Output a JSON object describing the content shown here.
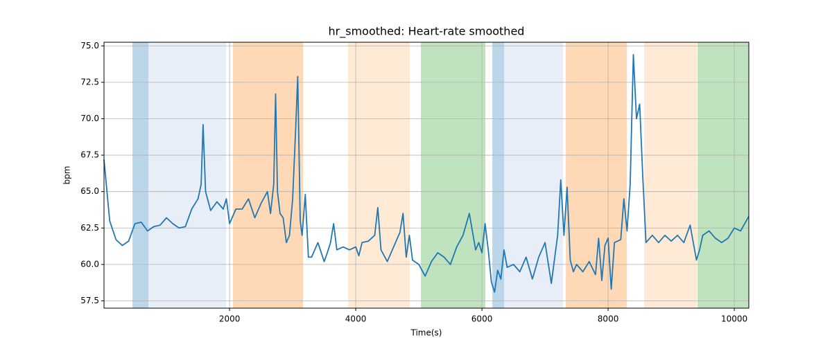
{
  "chart_data": {
    "type": "line",
    "title": "hr_smoothed: Heart-rate smoothed",
    "x_label": "Time(s)",
    "y_label": "bpm",
    "xlim": [
      10,
      10230
    ],
    "ylim": [
      57,
      75.25
    ],
    "xticks": [
      2000,
      4000,
      6000,
      8000,
      10000
    ],
    "yticks": [
      57.5,
      {
        "value": 60,
        "label": "60.0"
      },
      62.5,
      {
        "value": 65,
        "label": "65.0"
      },
      67.5,
      {
        "value": 70,
        "label": "70.0"
      },
      72.5,
      {
        "value": 75,
        "label": "75.0"
      }
    ],
    "grid": true,
    "spans": [
      {
        "start": 462,
        "end": 714,
        "color": "#1f77b4"
      },
      {
        "start": 714,
        "end": 1945,
        "color": "#aec7e8"
      },
      {
        "start": 2055,
        "end": 3165,
        "color": "#ff7f0e"
      },
      {
        "start": 3879,
        "end": 4857,
        "color": "#ffbb78"
      },
      {
        "start": 5033,
        "end": 6055,
        "color": "#2ca02c"
      },
      {
        "start": 6165,
        "end": 6352,
        "color": "#1f77b4"
      },
      {
        "start": 6352,
        "end": 7286,
        "color": "#aec7e8"
      },
      {
        "start": 7330,
        "end": 8297,
        "color": "#ff7f0e"
      },
      {
        "start": 8571,
        "end": 9407,
        "color": "#ffbb78"
      },
      {
        "start": 9418,
        "end": 10230,
        "color": "#2ca02c"
      }
    ],
    "series": [
      {
        "color": "#1f77b4",
        "x": [
          10,
          100,
          200,
          300,
          400,
          500,
          600,
          700,
          800,
          900,
          1000,
          1100,
          1200,
          1300,
          1400,
          1500,
          1550,
          1580,
          1620,
          1700,
          1800,
          1900,
          1950,
          2000,
          2100,
          2200,
          2300,
          2400,
          2500,
          2600,
          2650,
          2700,
          2730,
          2760,
          2800,
          2850,
          2900,
          2950,
          3000,
          3050,
          3080,
          3120,
          3150,
          3200,
          3250,
          3300,
          3400,
          3500,
          3550,
          3600,
          3650,
          3700,
          3800,
          3900,
          4000,
          4050,
          4100,
          4200,
          4300,
          4350,
          4400,
          4500,
          4600,
          4700,
          4750,
          4800,
          4850,
          4900,
          5000,
          5100,
          5200,
          5300,
          5400,
          5500,
          5600,
          5700,
          5800,
          5900,
          5950,
          6000,
          6050,
          6100,
          6150,
          6200,
          6250,
          6300,
          6350,
          6400,
          6500,
          6600,
          6700,
          6800,
          6900,
          7000,
          7100,
          7200,
          7250,
          7300,
          7350,
          7400,
          7450,
          7500,
          7600,
          7700,
          7800,
          7850,
          7900,
          7950,
          8000,
          8050,
          8100,
          8200,
          8250,
          8300,
          8350,
          8400,
          8450,
          8500,
          8550,
          8600,
          8700,
          8800,
          8900,
          9000,
          9100,
          9200,
          9300,
          9400,
          9450,
          9500,
          9600,
          9700,
          9800,
          9900,
          10000,
          10100,
          10230
        ],
        "values": [
          67.2,
          63.0,
          61.7,
          61.3,
          61.6,
          62.8,
          62.9,
          62.3,
          62.6,
          62.7,
          63.2,
          62.8,
          62.5,
          62.6,
          63.8,
          64.5,
          65.5,
          69.6,
          65.0,
          63.7,
          64.3,
          63.8,
          64.5,
          62.8,
          63.8,
          63.8,
          64.5,
          63.2,
          64.2,
          65.0,
          63.5,
          65.5,
          71.7,
          65.0,
          63.5,
          63.2,
          61.5,
          62.0,
          64.5,
          69.5,
          72.9,
          63.0,
          62.0,
          64.8,
          60.5,
          60.5,
          61.5,
          60.2,
          60.8,
          61.5,
          62.8,
          61.0,
          61.2,
          61.0,
          61.2,
          60.6,
          61.5,
          61.6,
          62.0,
          63.9,
          61.0,
          60.2,
          61.2,
          62.2,
          63.5,
          60.5,
          62.0,
          60.3,
          60.0,
          59.2,
          60.2,
          60.8,
          60.5,
          60.0,
          61.2,
          62.0,
          63.5,
          61.0,
          61.5,
          60.8,
          62.8,
          61.0,
          58.8,
          58.1,
          59.6,
          59.0,
          61.0,
          59.8,
          60.0,
          59.5,
          60.5,
          59.0,
          60.5,
          61.5,
          58.7,
          62.0,
          65.8,
          62.0,
          65.3,
          60.3,
          59.5,
          60.0,
          59.5,
          60.2,
          59.3,
          61.8,
          58.9,
          61.3,
          61.8,
          58.3,
          61.5,
          61.7,
          64.5,
          62.3,
          65.5,
          74.4,
          70.0,
          71.0,
          66.0,
          61.5,
          62.0,
          61.5,
          62.0,
          61.6,
          62.0,
          61.5,
          62.7,
          60.3,
          61.0,
          62.0,
          62.3,
          61.8,
          61.5,
          61.8,
          62.5,
          62.3,
          63.3
        ]
      }
    ]
  }
}
